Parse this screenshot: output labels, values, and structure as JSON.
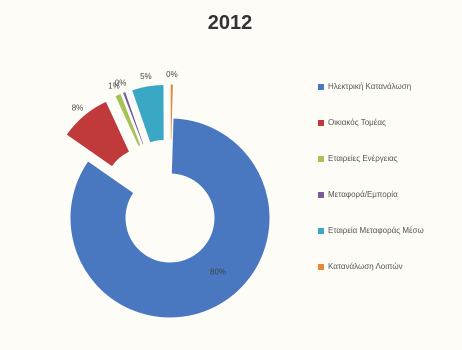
{
  "chart_data": {
    "type": "pie",
    "title": "2012",
    "donut": true,
    "exploded": true,
    "legend_position": "right",
    "categories": [
      "Ηλεκτρική Κατανάλωση",
      "Οικιακός Τομέας",
      "Εταιρείες Ενέργειας",
      "Μεταφορά/Εμπορία",
      "Εταιρεία Μεταφοράς Μέσω",
      "Κατανάλωση Λοιπών"
    ],
    "values": [
      80,
      8,
      1,
      0.5,
      5,
      0.5
    ],
    "data_labels": [
      "80%",
      "8%",
      "1%",
      "0%",
      "5%",
      "0%"
    ],
    "colors": [
      "#4a78c0",
      "#c0393b",
      "#a8c25a",
      "#7a5a9c",
      "#3aa7c4",
      "#e8873a"
    ]
  }
}
